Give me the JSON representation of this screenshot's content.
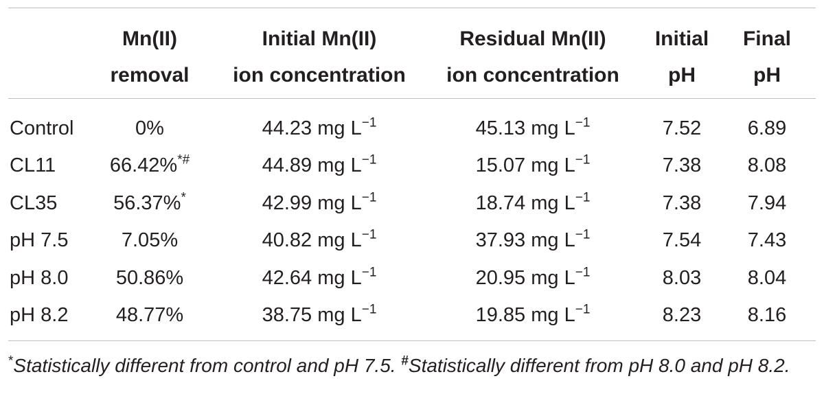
{
  "table": {
    "headers": {
      "removal": [
        "Mn(II)",
        "removal"
      ],
      "initial": [
        "Initial Mn(II)",
        "ion concentration"
      ],
      "residual": [
        "Residual Mn(II)",
        "ion concentration"
      ],
      "initial_ph": [
        "Initial",
        "pH"
      ],
      "final_ph": [
        "Final",
        "pH"
      ]
    },
    "unit": "mg L",
    "unit_exp": "−1",
    "rows": [
      {
        "label": "Control",
        "removal": "0%",
        "removal_mark": "",
        "initial": "44.23",
        "residual": "45.13",
        "initial_ph": "7.52",
        "final_ph": "6.89"
      },
      {
        "label": "CL11",
        "removal": "66.42%",
        "removal_mark": "*#",
        "initial": "44.89",
        "residual": "15.07",
        "initial_ph": "7.38",
        "final_ph": "8.08"
      },
      {
        "label": "CL35",
        "removal": "56.37%",
        "removal_mark": "*",
        "initial": "42.99",
        "residual": "18.74",
        "initial_ph": "7.38",
        "final_ph": "7.94"
      },
      {
        "label": "pH 7.5",
        "removal": "7.05%",
        "removal_mark": "",
        "initial": "40.82",
        "residual": "37.93",
        "initial_ph": "7.54",
        "final_ph": "7.43"
      },
      {
        "label": "pH 8.0",
        "removal": "50.86%",
        "removal_mark": "",
        "initial": "42.64",
        "residual": "20.95",
        "initial_ph": "8.03",
        "final_ph": "8.04"
      },
      {
        "label": "pH 8.2",
        "removal": "48.77%",
        "removal_mark": "",
        "initial": "38.75",
        "residual": "19.85",
        "initial_ph": "8.23",
        "final_ph": "8.16"
      }
    ]
  },
  "footnote": {
    "mark1": "*",
    "text1": "Statistically different from control and pH 7.5. ",
    "mark2": "#",
    "text2": "Statistically different from pH 8.0 and pH 8.2."
  }
}
